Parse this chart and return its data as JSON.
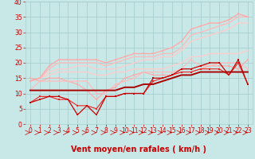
{
  "xlabel": "Vent moyen/en rafales ( km/h )",
  "xlim": [
    -0.5,
    23.5
  ],
  "ylim": [
    0,
    40
  ],
  "xticks": [
    0,
    1,
    2,
    3,
    4,
    5,
    6,
    7,
    8,
    9,
    10,
    11,
    12,
    13,
    14,
    15,
    16,
    17,
    18,
    19,
    20,
    21,
    22,
    23
  ],
  "yticks": [
    0,
    5,
    10,
    15,
    20,
    25,
    30,
    35,
    40
  ],
  "bg_color": "#c8e8e8",
  "grid_color": "#a8d0d0",
  "lines": [
    {
      "x": [
        0,
        1,
        2,
        3,
        4,
        5,
        6,
        7,
        8,
        9,
        10,
        11,
        12,
        13,
        14,
        15,
        16,
        17,
        18,
        19,
        20,
        21,
        22,
        23
      ],
      "y": [
        7,
        8,
        9,
        9,
        8,
        3,
        6,
        3,
        9,
        9,
        10,
        10,
        10,
        15,
        15,
        16,
        18,
        18,
        19,
        20,
        20,
        16,
        21,
        13
      ],
      "color": "#cc0000",
      "lw": 0.9,
      "marker": "s",
      "ms": 2.0,
      "zorder": 5
    },
    {
      "x": [
        0,
        1,
        2,
        3,
        4,
        5,
        6,
        7,
        8,
        9,
        10,
        11,
        12,
        13,
        14,
        15,
        16,
        17,
        18,
        19,
        20,
        21,
        22,
        23
      ],
      "y": [
        7,
        9,
        9,
        8,
        8,
        6,
        6,
        5,
        9,
        9,
        10,
        10,
        10,
        14,
        15,
        16,
        17,
        17,
        18,
        18,
        18,
        16,
        20,
        13
      ],
      "color": "#ee2222",
      "lw": 0.8,
      "marker": "s",
      "ms": 1.8,
      "zorder": 4
    },
    {
      "x": [
        0,
        1,
        2,
        3,
        4,
        5,
        6,
        7,
        8,
        9,
        10,
        11,
        12,
        13,
        14,
        15,
        16,
        17,
        18,
        19,
        20,
        21,
        22,
        23
      ],
      "y": [
        11,
        11,
        11,
        11,
        11,
        11,
        11,
        11,
        11,
        11,
        12,
        12,
        13,
        13,
        14,
        15,
        16,
        16,
        17,
        17,
        17,
        17,
        17,
        17
      ],
      "color": "#aa0000",
      "lw": 1.4,
      "marker": null,
      "ms": 0,
      "zorder": 6
    },
    {
      "x": [
        0,
        1,
        2,
        3,
        4,
        5,
        6,
        7,
        8,
        9,
        10,
        11,
        12,
        13,
        14,
        15,
        16,
        17,
        18,
        19,
        20,
        21,
        22,
        23
      ],
      "y": [
        15,
        14,
        15,
        15,
        14,
        13,
        11,
        8,
        11,
        12,
        15,
        16,
        17,
        16,
        16,
        16,
        17,
        17,
        18,
        19,
        19,
        19,
        18,
        21
      ],
      "color": "#ffaaaa",
      "lw": 0.9,
      "marker": "s",
      "ms": 1.8,
      "zorder": 3
    },
    {
      "x": [
        0,
        1,
        2,
        3,
        4,
        5,
        6,
        7,
        8,
        9,
        10,
        11,
        12,
        13,
        14,
        15,
        16,
        17,
        18,
        19,
        20,
        21,
        22,
        23
      ],
      "y": [
        11,
        14,
        14,
        14,
        14,
        14,
        14,
        10,
        10,
        13,
        14,
        15,
        17,
        17,
        17,
        17,
        18,
        21,
        19,
        19,
        20,
        20,
        20,
        18
      ],
      "color": "#ffbbbb",
      "lw": 0.9,
      "marker": "s",
      "ms": 1.8,
      "zorder": 3
    },
    {
      "x": [
        0,
        1,
        2,
        3,
        4,
        5,
        6,
        7,
        8,
        9,
        10,
        11,
        12,
        13,
        14,
        15,
        16,
        17,
        18,
        19,
        20,
        21,
        22,
        23
      ],
      "y": [
        14,
        15,
        16,
        17,
        17,
        17,
        17,
        16,
        16,
        17,
        17,
        18,
        18,
        18,
        18,
        19,
        20,
        22,
        22,
        23,
        23,
        23,
        23,
        24
      ],
      "color": "#ffcccc",
      "lw": 1.0,
      "marker": null,
      "ms": 0,
      "zorder": 2
    },
    {
      "x": [
        0,
        1,
        2,
        3,
        4,
        5,
        6,
        7,
        8,
        9,
        10,
        11,
        12,
        13,
        14,
        15,
        16,
        17,
        18,
        19,
        20,
        21,
        22,
        23
      ],
      "y": [
        14,
        15,
        17,
        18,
        18,
        19,
        19,
        18,
        18,
        18,
        19,
        20,
        21,
        21,
        22,
        22,
        24,
        27,
        28,
        29,
        30,
        31,
        33,
        33
      ],
      "color": "#ffcccc",
      "lw": 1.0,
      "marker": null,
      "ms": 0,
      "zorder": 2
    },
    {
      "x": [
        0,
        1,
        2,
        3,
        4,
        5,
        6,
        7,
        8,
        9,
        10,
        11,
        12,
        13,
        14,
        15,
        16,
        17,
        18,
        19,
        20,
        21,
        22,
        23
      ],
      "y": [
        14,
        15,
        18,
        20,
        20,
        20,
        20,
        20,
        19,
        20,
        21,
        22,
        22,
        22,
        23,
        23,
        25,
        29,
        30,
        31,
        32,
        33,
        35,
        35
      ],
      "color": "#ffbbbb",
      "lw": 1.0,
      "marker": null,
      "ms": 0,
      "zorder": 2
    },
    {
      "x": [
        0,
        1,
        2,
        3,
        4,
        5,
        6,
        7,
        8,
        9,
        10,
        11,
        12,
        13,
        14,
        15,
        16,
        17,
        18,
        19,
        20,
        21,
        22,
        23
      ],
      "y": [
        14,
        15,
        19,
        21,
        21,
        21,
        21,
        21,
        20,
        21,
        22,
        23,
        23,
        23,
        24,
        25,
        27,
        31,
        32,
        33,
        33,
        34,
        36,
        35
      ],
      "color": "#ffaaaa",
      "lw": 1.0,
      "marker": "s",
      "ms": 1.8,
      "zorder": 2
    }
  ],
  "arrow_color": "#cc0000",
  "xlabel_color": "#cc0000",
  "xlabel_fontsize": 7,
  "tick_fontsize": 5.5,
  "tick_color": "#cc0000"
}
